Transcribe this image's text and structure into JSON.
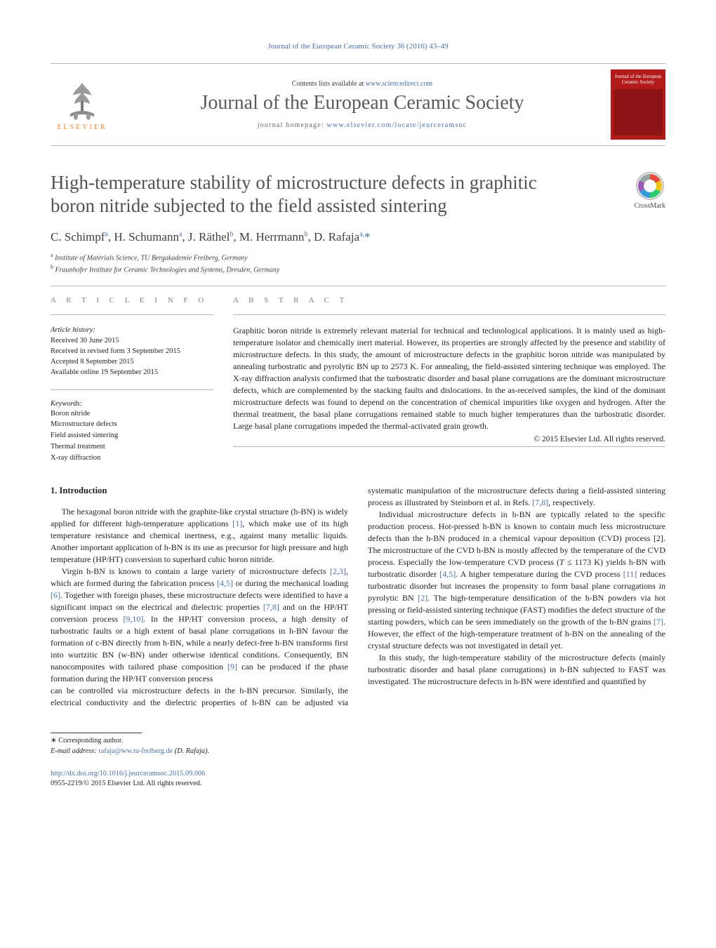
{
  "header": {
    "running_head": "Journal of the European Ceramic Society 36 (2016) 43–49",
    "contents_line_pre": "Contents lists available at ",
    "contents_link": "www.sciencedirect.com",
    "journal_title": "Journal of the European Ceramic Society",
    "homepage_label": "journal homepage: ",
    "homepage_link": "www.elsevier.com/locate/jeurceramsoc",
    "elsevier_word": "ELSEVIER",
    "cover_name": "Journal of the European Ceramic Society"
  },
  "article": {
    "title": "High-temperature stability of microstructure defects in graphitic boron nitride subjected to the field assisted sintering",
    "crossmark_label": "CrossMark",
    "authors_html": "C. Schimpf<sup>a</sup>, H. Schumann<sup>a</sup>, J. Räthel<sup>b</sup>, M. Herrmann<sup>b</sup>, D. Rafaja<sup>a,</sup><span class='star'>*</span>",
    "affiliations": [
      "Institute of Materials Science, TU Bergakademie Freiberg, Germany",
      "Fraunhofer Institute for Ceramic Technologies and Systems, Dresden, Germany"
    ],
    "affil_markers": [
      "a",
      "b"
    ]
  },
  "info": {
    "section_label": "A R T I C L E   I N F O",
    "history_label": "Article history:",
    "history": [
      "Received 30 June 2015",
      "Received in revised form 3 September 2015",
      "Accepted 8 September 2015",
      "Available online 19 September 2015"
    ],
    "keywords_label": "Keywords:",
    "keywords": [
      "Boron nitride",
      "Microstructure defects",
      "Field assisted sintering",
      "Thermal treatment",
      "X-ray diffraction"
    ]
  },
  "abstract": {
    "section_label": "A B S T R A C T",
    "text": "Graphitic boron nitride is extremely relevant material for technical and technological applications. It is mainly used as high-temperature isolator and chemically inert material. However, its properties are strongly affected by the presence and stability of microstructure defects. In this study, the amount of microstructure defects in the graphitic boron nitride was manipulated by annealing turbostratic and pyrolytic BN up to 2573 K. For annealing, the field-assisted sintering technique was employed. The X-ray diffraction analysis confirmed that the turbostratic disorder and basal plane corrugations are the dominant microstructure defects, which are complemented by the stacking faults and dislocations. In the as-received samples, the kind of the dominant microstructure defects was found to depend on the concentration of chemical impurities like oxygen and hydrogen. After the thermal treatment, the basal plane corrugations remained stable to much higher temperatures than the turbostratic disorder. Large basal plane corrugations impeded the thermal-activated grain growth.",
    "copyright": "© 2015 Elsevier Ltd. All rights reserved."
  },
  "body": {
    "section1_title": "1.  Introduction",
    "p1": "The hexagonal boron nitride with the graphite-like crystal structure (h-BN) is widely applied for different high-temperature applications [1], which make use of its high temperature resistance and chemical inertness, e.g., against many metallic liquids. Another important application of h-BN is its use as precursor for high pressure and high temperature (HP/HT) conversion to superhard cubic boron nitride.",
    "p2": "Virgin h-BN is known to contain a large variety of microstructure defects [2,3], which are formed during the fabrication process [4,5] or during the mechanical loading [6]. Together with foreign phases, these microstructure defects were identified to have a significant impact on the electrical and dielectric properties [7,8] and on the HP/HT conversion process [9,10]. In the HP/HT conversion process, a high density of turbostratic faults or a high extent of basal plane corrugations in h-BN favour the formation of c-BN directly from h-BN, while a nearly defect-free h-BN transforms first into wurtzitic BN (w-BN) under otherwise identical conditions. Consequently, BN nanocomposites with tailored phase composition [9] can be produced if the phase formation during the HP/HT conversion process",
    "p3": "can be controlled via microstructure defects in the h-BN precursor. Similarly, the electrical conductivity and the dielectric properties of h-BN can be adjusted via systematic manipulation of the microstructure defects during a field-assisted sintering process as illustrated by Steinborn et al. in Refs. [7,8], respectively.",
    "p4_pre": "Individual microstructure defects in h-BN are typically related to the specific production process. Hot-pressed h-BN is known to contain much less microstructure defects than the h-BN produced in a chemical vapour deposition (CVD) process [2]. The microstructure of the CVD h-BN is mostly affected by the temperature of the CVD process. Especially the low-temperature CVD process (",
    "p4_T": "T",
    "p4_mid": " ≤ 1173 K) yields h-BN with turbostratic disorder [4,5]. A higher temperature during the CVD process [11] reduces turbostratic disorder but increases the propensity to form basal plane corrugations in pyrolytic BN [2]. The high-temperature densification of the h-BN powders via hot pressing or field-assisted sintering technique (FAST) modifies the defect structure of the starting powders, which can be seen immediately on the growth of the h-BN grains [7]. However, the effect of the high-temperature treatment of h-BN on the annealing of the crystal structure defects was not investigated in detail yet.",
    "p5": "In this study, the high-temperature stability of the microstructure defects (mainly turbostratic disorder and basal plane corrugations) in h-BN subjected to FAST was investigated. The microstructure defects in h-BN were identified and quantified by"
  },
  "footer": {
    "corr_label": "∗ Corresponding author.",
    "email_label": "E-mail address: ",
    "email": "rafaja@ww.tu-freiberg.de",
    "email_attr": " (D. Rafaja).",
    "doi_url": "http://dx.doi.org/10.1016/j.jeurceramsoc.2015.09.006",
    "issn_line": "0955-2219/© 2015 Elsevier Ltd. All rights reserved."
  },
  "colors": {
    "link": "#4a6fa5",
    "elsevier_orange": "#f58220",
    "cover_red": "#b31b1b",
    "text": "#231f20",
    "grey_title": "#525252",
    "rule": "#b7b7b7"
  },
  "refs": {
    "r1": "[1]",
    "r2": "[2]",
    "r23": "[2,3]",
    "r45": "[4,5]",
    "r6": "[6]",
    "r78": "[7,8]",
    "r910": "[9,10]",
    "r9": "[9]",
    "r11": "[11]",
    "r7": "[7]"
  }
}
